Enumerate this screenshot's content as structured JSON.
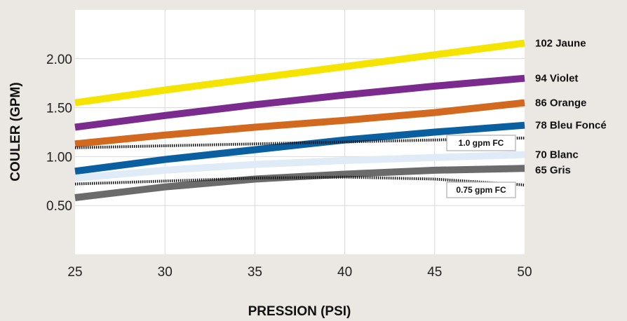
{
  "chart_data": {
    "type": "line",
    "title": "",
    "xlabel": "PRESSION (PSI)",
    "ylabel": "COULER (GPM)",
    "xlim": [
      25,
      50
    ],
    "ylim": [
      0.0,
      2.5
    ],
    "x_ticks": [
      25,
      30,
      35,
      40,
      45,
      50
    ],
    "x_tick_labels": [
      "25",
      "30",
      "35",
      "40",
      "45",
      "50"
    ],
    "y_ticks": [
      0.5,
      1.0,
      1.5,
      2.0
    ],
    "y_tick_labels": [
      "0.50",
      "1.00",
      "1.50",
      "2.00"
    ],
    "grid": true,
    "legend": "labels at right end of each line",
    "x": [
      25,
      30,
      35,
      40,
      45,
      50
    ],
    "series": [
      {
        "name": "102 Jaune",
        "color": "#f5e400",
        "values": [
          1.55,
          1.68,
          1.8,
          1.92,
          2.04,
          2.16
        ]
      },
      {
        "name": "94 Violet",
        "color": "#7b2a8e",
        "values": [
          1.3,
          1.42,
          1.53,
          1.63,
          1.72,
          1.8
        ]
      },
      {
        "name": "86 Orange",
        "color": "#d2691e",
        "values": [
          1.13,
          1.22,
          1.3,
          1.37,
          1.45,
          1.55
        ]
      },
      {
        "name": "78 Bleu Foncé",
        "color": "#0a5fa0",
        "values": [
          0.85,
          0.97,
          1.07,
          1.17,
          1.25,
          1.32
        ]
      },
      {
        "name": "70 Blanc",
        "color": "#e0ebf8",
        "values": [
          0.78,
          0.86,
          0.92,
          0.96,
          0.99,
          1.02
        ]
      },
      {
        "name": "65 Gris",
        "color": "#6b6b6b",
        "values": [
          0.58,
          0.69,
          0.77,
          0.82,
          0.86,
          0.88
        ]
      }
    ],
    "reference_lines": [
      {
        "label": "1.0 gpm FC",
        "values": [
          1.09,
          1.11,
          1.13,
          1.15,
          1.17,
          1.19
        ]
      },
      {
        "label": "0.75 gpm FC",
        "values": [
          0.72,
          0.75,
          0.78,
          0.79,
          0.77,
          0.71
        ]
      }
    ]
  }
}
